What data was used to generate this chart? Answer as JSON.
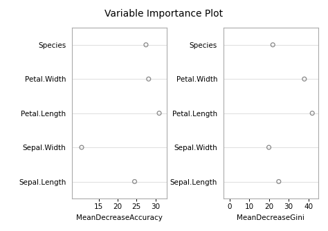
{
  "title": "Variable Importance Plot",
  "variables": [
    "Species",
    "Petal.Width",
    "Petal.Length",
    "Sepal.Width",
    "Sepal.Length"
  ],
  "left_xlabel": "MeanDecreaseAccuracy",
  "right_xlabel": "MeanDecreaseGini",
  "left_values": [
    27.5,
    28.2,
    31.0,
    10.5,
    24.5
  ],
  "right_values": [
    22.0,
    38.0,
    42.0,
    20.0,
    25.0
  ],
  "left_xlim": [
    8,
    33
  ],
  "right_xlim": [
    -3,
    45
  ],
  "left_xticks": [
    15,
    20,
    25,
    30
  ],
  "right_xticks": [
    0,
    10,
    20,
    30,
    40
  ],
  "background_color": "#ffffff",
  "plot_bg_color": "#ffffff",
  "dot_color": "#888888",
  "grid_color": "#dddddd",
  "spine_color": "#aaaaaa",
  "title_fontsize": 10,
  "label_fontsize": 7.5,
  "tick_fontsize": 7.5,
  "xlabel_fontsize": 7.5
}
